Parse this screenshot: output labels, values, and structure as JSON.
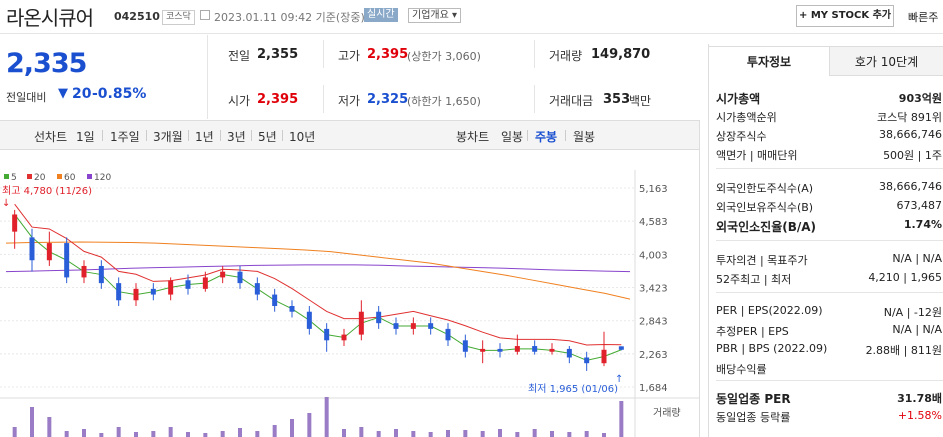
{
  "header": {
    "name": "라온시큐어",
    "code": "042510",
    "market": "코스닥",
    "date": "2023.01.11 09:42 기준(장중)",
    "realtime": "실시간",
    "company_info": "기업개요",
    "mystock": "+ MY STOCK 추가",
    "quick": "빠른주"
  },
  "price": {
    "current": "2,335",
    "change_label": "전일대비",
    "change_arrow": "▼",
    "change": "20",
    "change_pct": "-0.85%"
  },
  "stats": {
    "prev_label": "전일",
    "prev": "2,355",
    "high_label": "고가",
    "high": "2,395",
    "upper_label": "(상한가 3,060)",
    "volume_label": "거래량",
    "volume": "149,870",
    "open_label": "시가",
    "open": "2,395",
    "low_label": "저가",
    "low": "2,325",
    "lower_label": "(하한가 1,650)",
    "amount_label": "거래대금",
    "amount": "353",
    "amount_unit": "백만"
  },
  "tabs": {
    "line_label": "선차트",
    "line": [
      "1일",
      "1주일",
      "3개월",
      "1년",
      "3년",
      "5년",
      "10년"
    ],
    "candle_label": "봉차트",
    "candle": [
      "일봉",
      "주봉",
      "월봉"
    ]
  },
  "right_tabs": [
    "투자정보",
    "호가 10단계"
  ],
  "info": {
    "rows1": [
      {
        "l": "시가총액",
        "v": "903억원",
        "b": true
      },
      {
        "l": "시가총액순위",
        "v": "코스닥 891위"
      },
      {
        "l": "상장주식수",
        "v": "38,666,746"
      },
      {
        "l": "액면가 | 매매단위",
        "v": "500원 | 1주"
      }
    ],
    "rows2": [
      {
        "l": "외국인한도주식수(A)",
        "v": "38,666,746"
      },
      {
        "l": "외국인보유주식수(B)",
        "v": "673,487"
      },
      {
        "l": "외국인소진율(B/A)",
        "v": "1.74%",
        "b": true
      }
    ],
    "rows3": [
      {
        "l": "투자의견 | 목표주가",
        "v": "N/A | N/A"
      },
      {
        "l": "52주최고 | 최저",
        "v": "4,210 | 1,965"
      }
    ],
    "rows4": [
      {
        "l": "PER | EPS(2022.09)",
        "v": "N/A | -12원"
      },
      {
        "l": "추정PER | EPS",
        "v": "N/A | N/A"
      },
      {
        "l": "PBR | BPS (2022.09)",
        "v": "2.88배 | 811원"
      },
      {
        "l": "배당수익률",
        "v": ""
      }
    ],
    "rows5": [
      {
        "l": "동일업종 PER",
        "v": "31.78배",
        "b": true
      },
      {
        "l": "동일업종 등락률",
        "v": "+1.58%",
        "r": true
      }
    ]
  },
  "chart_data": {
    "type": "candlestick",
    "legend": [
      {
        "name": "5",
        "color": "#44aa33"
      },
      {
        "name": "20",
        "color": "#e03030"
      },
      {
        "name": "60",
        "color": "#f08020"
      },
      {
        "name": "120",
        "color": "#8844cc"
      }
    ],
    "yticks": [
      "5,163",
      "4,583",
      "4,003",
      "3,423",
      "2,843",
      "2,263",
      "1,684"
    ],
    "ytick_values": [
      5163,
      4583,
      4003,
      3423,
      2843,
      2263,
      1684
    ],
    "high_label": "최고 4,780 (11/26)",
    "low_label": "최저 1,965 (01/06)",
    "volume_label": "거래량",
    "ma120": [
      3700,
      3710,
      3720,
      3730,
      3745,
      3760,
      3770,
      3780,
      3790,
      3800,
      3810,
      3815,
      3818,
      3820,
      3818,
      3812,
      3800,
      3790,
      3780,
      3770,
      3760,
      3745,
      3730,
      3720,
      3710,
      3700
    ],
    "ma60": [
      4200,
      4210,
      4215,
      4220,
      4215,
      4210,
      4200,
      4180,
      4160,
      4140,
      4120,
      4100,
      4080,
      4050,
      4000,
      3950,
      3900,
      3850,
      3780,
      3710,
      3640,
      3560,
      3480,
      3400,
      3320,
      3220
    ],
    "candles": [
      {
        "o": 4400,
        "c": 4700,
        "h": 4780,
        "l": 4100
      },
      {
        "o": 4300,
        "c": 3900,
        "h": 4450,
        "l": 3700
      },
      {
        "o": 3900,
        "c": 4200,
        "h": 4400,
        "l": 3800
      },
      {
        "o": 4200,
        "c": 3600,
        "h": 4300,
        "l": 3500
      },
      {
        "o": 3600,
        "c": 3800,
        "h": 3900,
        "l": 3500
      },
      {
        "o": 3800,
        "c": 3500,
        "h": 3900,
        "l": 3400
      },
      {
        "o": 3500,
        "c": 3200,
        "h": 3600,
        "l": 3100
      },
      {
        "o": 3200,
        "c": 3400,
        "h": 3500,
        "l": 3100
      },
      {
        "o": 3400,
        "c": 3300,
        "h": 3500,
        "l": 3200
      },
      {
        "o": 3300,
        "c": 3550,
        "h": 3600,
        "l": 3200
      },
      {
        "o": 3550,
        "c": 3400,
        "h": 3650,
        "l": 3300
      },
      {
        "o": 3400,
        "c": 3600,
        "h": 3700,
        "l": 3350
      },
      {
        "o": 3600,
        "c": 3700,
        "h": 3800,
        "l": 3500
      },
      {
        "o": 3700,
        "c": 3500,
        "h": 3800,
        "l": 3400
      },
      {
        "o": 3500,
        "c": 3300,
        "h": 3600,
        "l": 3200
      },
      {
        "o": 3300,
        "c": 3100,
        "h": 3400,
        "l": 3000
      },
      {
        "o": 3100,
        "c": 3000,
        "h": 3200,
        "l": 2900
      },
      {
        "o": 3000,
        "c": 2700,
        "h": 3100,
        "l": 2600
      },
      {
        "o": 2700,
        "c": 2500,
        "h": 2800,
        "l": 2300
      },
      {
        "o": 2500,
        "c": 2600,
        "h": 2700,
        "l": 2400
      },
      {
        "o": 2600,
        "c": 3000,
        "h": 3200,
        "l": 2500
      },
      {
        "o": 3000,
        "c": 2800,
        "h": 3100,
        "l": 2700
      },
      {
        "o": 2800,
        "c": 2700,
        "h": 2900,
        "l": 2600
      },
      {
        "o": 2700,
        "c": 2800,
        "h": 2900,
        "l": 2600
      },
      {
        "o": 2800,
        "c": 2700,
        "h": 2900,
        "l": 2600
      },
      {
        "o": 2700,
        "c": 2500,
        "h": 2800,
        "l": 2400
      },
      {
        "o": 2500,
        "c": 2300,
        "h": 2600,
        "l": 2200
      },
      {
        "o": 2300,
        "c": 2350,
        "h": 2500,
        "l": 2100
      },
      {
        "o": 2350,
        "c": 2300,
        "h": 2450,
        "l": 2200
      },
      {
        "o": 2300,
        "c": 2400,
        "h": 2600,
        "l": 2250
      },
      {
        "o": 2400,
        "c": 2300,
        "h": 2500,
        "l": 2250
      },
      {
        "o": 2300,
        "c": 2350,
        "h": 2450,
        "l": 2250
      },
      {
        "o": 2350,
        "c": 2200,
        "h": 2400,
        "l": 2100
      },
      {
        "o": 2200,
        "c": 2100,
        "h": 2300,
        "l": 1965
      },
      {
        "o": 2100,
        "c": 2335,
        "h": 2650,
        "l": 2050
      },
      {
        "o": 2395,
        "c": 2335,
        "h": 2395,
        "l": 2325
      }
    ]
  }
}
